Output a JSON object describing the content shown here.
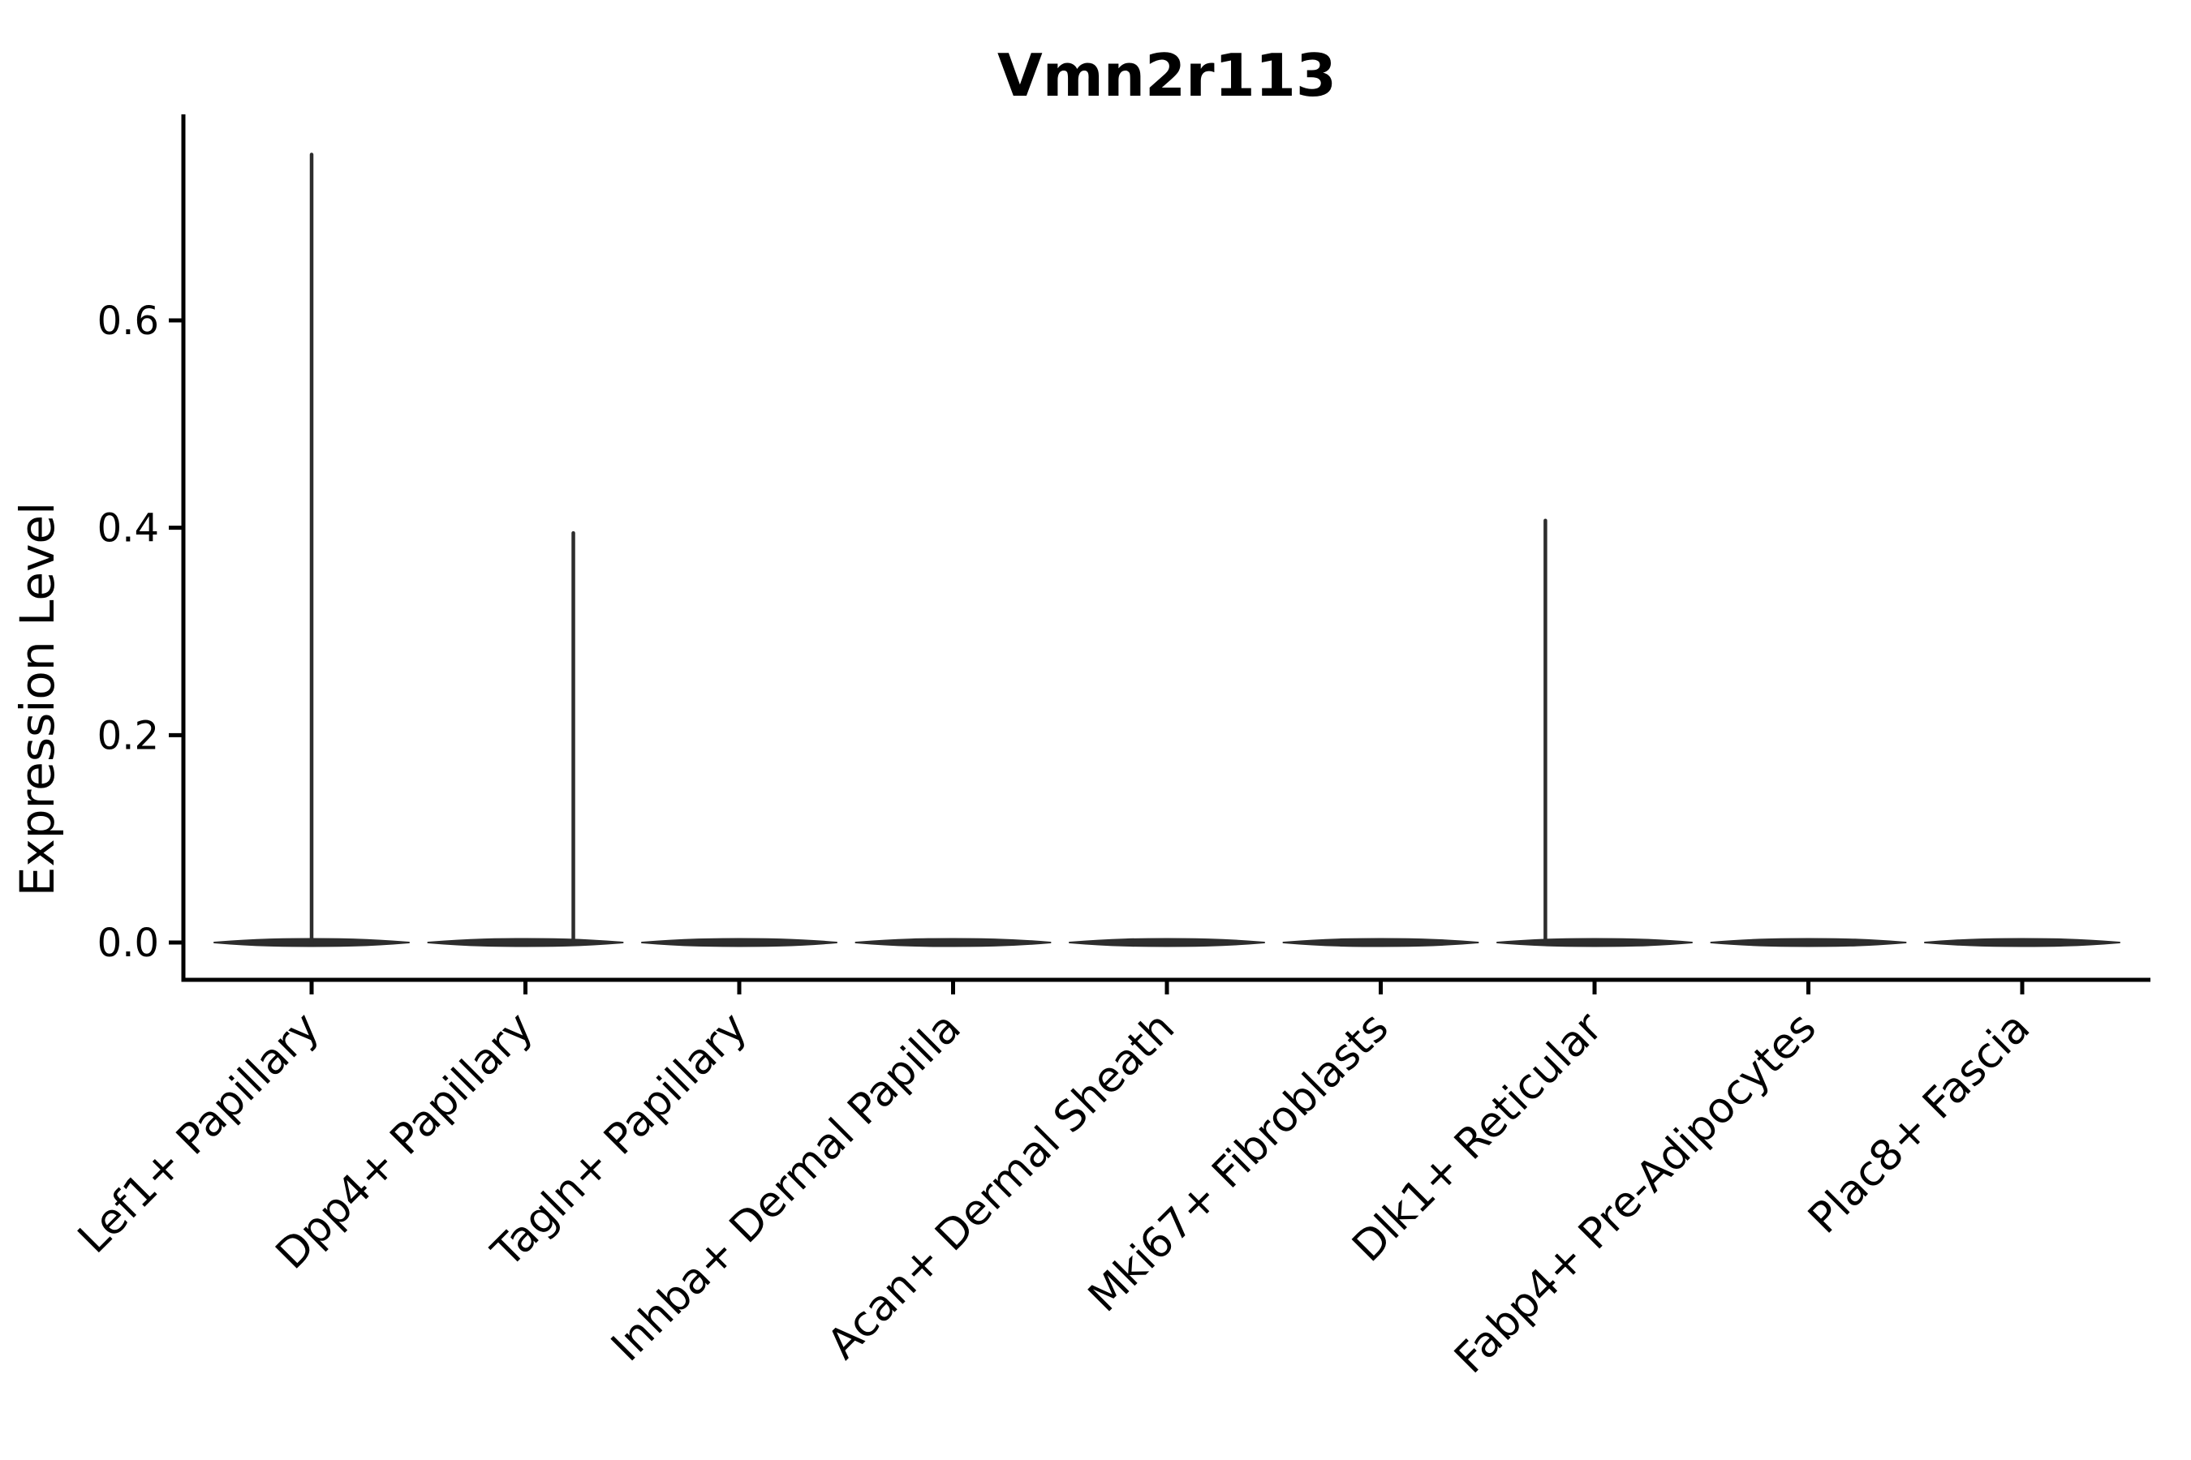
{
  "figure": {
    "title": "Vmn2r113"
  },
  "colors": {
    "background": "#ffffff",
    "axis": "#000000",
    "text": "#000000",
    "violin": "#2d2d2d"
  },
  "chart_data": {
    "type": "violin",
    "title": "Vmn2r113",
    "xlabel": "",
    "ylabel": "Expression Level",
    "grid": false,
    "legend": null,
    "ylim": [
      -0.036,
      0.8
    ],
    "yticks": [
      0.0,
      0.2,
      0.4,
      0.6
    ],
    "ytick_labels": [
      "0.0",
      "0.2",
      "0.4",
      "0.6"
    ],
    "xtick_rotation_deg": 45,
    "categories": [
      "Lef1+ Papillary",
      "Dpp4+ Papillary",
      "Tagln+ Papillary",
      "Inhba+ Dermal Papilla",
      "Acan+ Dermal Sheath",
      "Mki67+ Fibroblasts",
      "Dlk1+ Reticular",
      "Fabp4+ Pre-Adipocytes",
      "Plac8+ Fascia"
    ],
    "violins": [
      {
        "category": "Lef1+ Papillary",
        "baseline_value": 0.0,
        "max_value": 0.76,
        "spike_offset_frac": 0.0
      },
      {
        "category": "Dpp4+ Papillary",
        "baseline_value": 0.0,
        "max_value": 0.395,
        "spike_offset_frac": 0.224
      },
      {
        "category": "Tagln+ Papillary",
        "baseline_value": 0.0,
        "max_value": 0.0,
        "spike_offset_frac": 0.0
      },
      {
        "category": "Inhba+ Dermal Papilla",
        "baseline_value": 0.0,
        "max_value": 0.0,
        "spike_offset_frac": 0.0
      },
      {
        "category": "Acan+ Dermal Sheath",
        "baseline_value": 0.0,
        "max_value": 0.0,
        "spike_offset_frac": 0.0
      },
      {
        "category": "Mki67+ Fibroblasts",
        "baseline_value": 0.0,
        "max_value": 0.0,
        "spike_offset_frac": 0.0
      },
      {
        "category": "Dlk1+ Reticular",
        "baseline_value": 0.0,
        "max_value": 0.407,
        "spike_offset_frac": -0.23
      },
      {
        "category": "Fabp4+ Pre-Adipocytes",
        "baseline_value": 0.0,
        "max_value": 0.0,
        "spike_offset_frac": 0.0
      },
      {
        "category": "Plac8+ Fascia",
        "baseline_value": 0.0,
        "max_value": 0.0,
        "spike_offset_frac": 0.0
      }
    ]
  }
}
